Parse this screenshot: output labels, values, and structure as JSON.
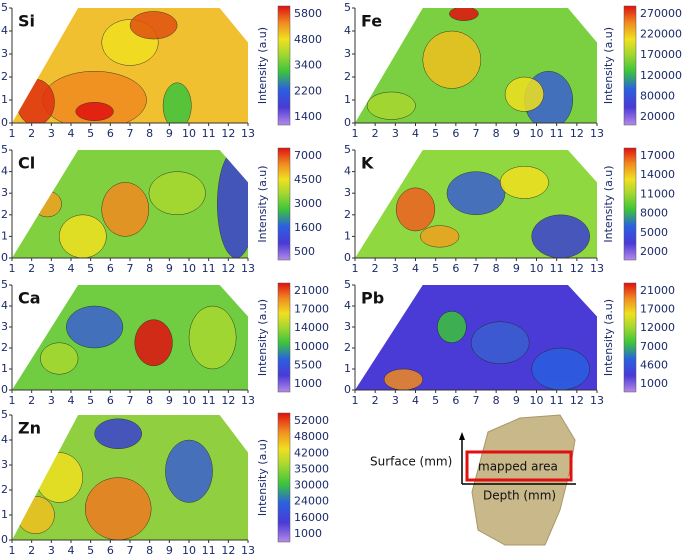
{
  "chart_data": [
    {
      "type": "contour",
      "title": "Si",
      "xlim": [
        1,
        13
      ],
      "ylim": [
        0,
        5
      ],
      "xticks": [
        1,
        2,
        3,
        4,
        5,
        6,
        7,
        8,
        9,
        10,
        11,
        12,
        13
      ],
      "yticks": [
        0,
        1,
        2,
        3,
        4,
        5
      ],
      "colorbar_label": "Intensity (a.u)",
      "colorbar_ticks": [
        1400,
        2200,
        3400,
        4800,
        5800
      ]
    },
    {
      "type": "contour",
      "title": "Fe",
      "xlim": [
        1,
        13
      ],
      "ylim": [
        0,
        5
      ],
      "xticks": [
        1,
        2,
        3,
        4,
        5,
        6,
        7,
        8,
        9,
        10,
        11,
        12,
        13
      ],
      "yticks": [
        0,
        1,
        2,
        3,
        4,
        5
      ],
      "colorbar_label": "Intensity (a.u)",
      "colorbar_ticks": [
        20000,
        80000,
        120000,
        170000,
        220000,
        270000
      ]
    },
    {
      "type": "contour",
      "title": "Cl",
      "xlim": [
        1,
        13
      ],
      "ylim": [
        0,
        5
      ],
      "xticks": [
        1,
        2,
        3,
        4,
        5,
        6,
        7,
        8,
        9,
        10,
        11,
        12,
        13
      ],
      "yticks": [
        0,
        1,
        2,
        3,
        4,
        5
      ],
      "colorbar_label": "Intensity (a.u)",
      "colorbar_ticks": [
        500,
        1600,
        3000,
        4500,
        7000
      ]
    },
    {
      "type": "contour",
      "title": "K",
      "xlim": [
        1,
        13
      ],
      "ylim": [
        0,
        5
      ],
      "xticks": [
        1,
        2,
        3,
        4,
        5,
        6,
        7,
        8,
        9,
        10,
        11,
        12,
        13
      ],
      "yticks": [
        0,
        1,
        2,
        3,
        4,
        5
      ],
      "colorbar_label": "Intensity (a.u)",
      "colorbar_ticks": [
        2000,
        5000,
        8000,
        11000,
        14000,
        17000
      ]
    },
    {
      "type": "contour",
      "title": "Ca",
      "xlim": [
        1,
        13
      ],
      "ylim": [
        0,
        5
      ],
      "xticks": [
        1,
        2,
        3,
        4,
        5,
        6,
        7,
        8,
        9,
        10,
        11,
        12,
        13
      ],
      "yticks": [
        0,
        1,
        2,
        3,
        4,
        5
      ],
      "colorbar_label": "Intensity (a.u)",
      "colorbar_ticks": [
        1000,
        5500,
        10000,
        14000,
        17000,
        21000
      ]
    },
    {
      "type": "contour",
      "title": "Pb",
      "xlim": [
        1,
        13
      ],
      "ylim": [
        0,
        5
      ],
      "xticks": [
        1,
        2,
        3,
        4,
        5,
        6,
        7,
        8,
        9,
        10,
        11,
        12,
        13
      ],
      "yticks": [
        0,
        1,
        2,
        3,
        4,
        5
      ],
      "colorbar_label": "Intensity (a.u)",
      "colorbar_ticks": [
        1000,
        4600,
        7000,
        12000,
        17000,
        21000
      ]
    },
    {
      "type": "contour",
      "title": "Zn",
      "xlim": [
        1,
        13
      ],
      "ylim": [
        0,
        5
      ],
      "xticks": [
        1,
        2,
        3,
        4,
        5,
        6,
        7,
        8,
        9,
        10,
        11,
        12,
        13
      ],
      "yticks": [
        0,
        1,
        2,
        3,
        4,
        5
      ],
      "colorbar_label": "Intensity (a.u)",
      "colorbar_ticks": [
        1000,
        16000,
        24000,
        30000,
        35000,
        42000,
        48000,
        52000
      ]
    }
  ],
  "inset": {
    "surface_label": "Surface (mm)",
    "area_label": "mapped area",
    "depth_label": "Depth (mm)"
  }
}
